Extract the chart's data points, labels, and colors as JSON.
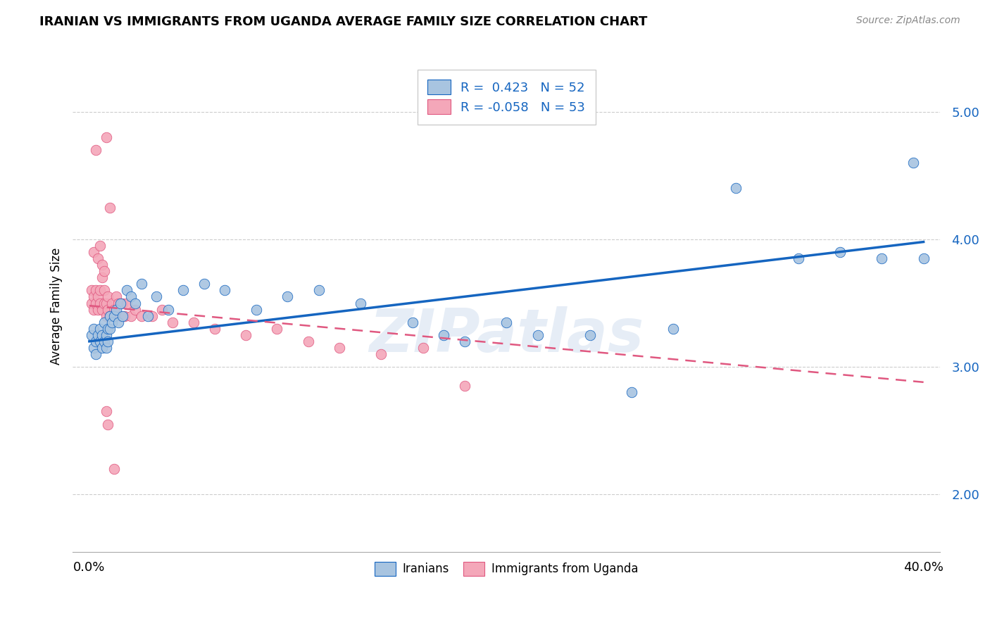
{
  "title": "IRANIAN VS IMMIGRANTS FROM UGANDA AVERAGE FAMILY SIZE CORRELATION CHART",
  "source": "Source: ZipAtlas.com",
  "ylabel": "Average Family Size",
  "yticks": [
    2.0,
    3.0,
    4.0,
    5.0
  ],
  "xlim": [
    -0.008,
    0.408
  ],
  "ylim": [
    1.55,
    5.4
  ],
  "watermark": "ZIPatlas",
  "legend_R1": "R =  0.423",
  "legend_N1": "N = 52",
  "legend_R2": "R = -0.058",
  "legend_N2": "N = 53",
  "iranians_color": "#a8c4e0",
  "uganda_color": "#f4a7b9",
  "trend_iranian_color": "#1565c0",
  "trend_uganda_color": "#e05880",
  "trend_iran_y0": 3.2,
  "trend_iran_y1": 3.98,
  "trend_uganda_y0": 3.48,
  "trend_uganda_y1": 2.88,
  "iranians_x": [
    0.001,
    0.002,
    0.002,
    0.003,
    0.003,
    0.004,
    0.005,
    0.005,
    0.006,
    0.006,
    0.007,
    0.007,
    0.008,
    0.008,
    0.009,
    0.009,
    0.01,
    0.01,
    0.011,
    0.012,
    0.013,
    0.014,
    0.015,
    0.016,
    0.018,
    0.02,
    0.022,
    0.025,
    0.028,
    0.032,
    0.038,
    0.045,
    0.055,
    0.065,
    0.08,
    0.095,
    0.11,
    0.13,
    0.155,
    0.18,
    0.2,
    0.215,
    0.24,
    0.26,
    0.28,
    0.31,
    0.34,
    0.36,
    0.38,
    0.395,
    0.4,
    0.17
  ],
  "iranians_y": [
    3.25,
    3.3,
    3.15,
    3.2,
    3.1,
    3.25,
    3.2,
    3.3,
    3.15,
    3.25,
    3.2,
    3.35,
    3.15,
    3.25,
    3.2,
    3.3,
    3.3,
    3.4,
    3.35,
    3.4,
    3.45,
    3.35,
    3.5,
    3.4,
    3.6,
    3.55,
    3.5,
    3.65,
    3.4,
    3.55,
    3.45,
    3.6,
    3.65,
    3.6,
    3.45,
    3.55,
    3.6,
    3.5,
    3.35,
    3.2,
    3.35,
    3.25,
    3.25,
    2.8,
    3.3,
    4.4,
    3.85,
    3.9,
    3.85,
    4.6,
    3.85,
    3.25
  ],
  "uganda_x": [
    0.001,
    0.001,
    0.002,
    0.002,
    0.003,
    0.003,
    0.004,
    0.004,
    0.005,
    0.005,
    0.006,
    0.006,
    0.007,
    0.007,
    0.008,
    0.008,
    0.009,
    0.009,
    0.01,
    0.011,
    0.012,
    0.013,
    0.014,
    0.015,
    0.016,
    0.017,
    0.018,
    0.02,
    0.022,
    0.025,
    0.03,
    0.035,
    0.04,
    0.05,
    0.06,
    0.075,
    0.09,
    0.105,
    0.12,
    0.14,
    0.16,
    0.18,
    0.008,
    0.01,
    0.003,
    0.002,
    0.004,
    0.006,
    0.005,
    0.007,
    0.008,
    0.009,
    0.012
  ],
  "uganda_y": [
    3.5,
    3.6,
    3.45,
    3.55,
    3.5,
    3.6,
    3.45,
    3.55,
    3.5,
    3.6,
    3.45,
    3.7,
    3.5,
    3.6,
    3.4,
    3.5,
    3.45,
    3.55,
    3.4,
    3.5,
    3.45,
    3.55,
    3.5,
    3.4,
    3.5,
    3.4,
    3.5,
    3.4,
    3.45,
    3.4,
    3.4,
    3.45,
    3.35,
    3.35,
    3.3,
    3.25,
    3.3,
    3.2,
    3.15,
    3.1,
    3.15,
    2.85,
    4.8,
    4.25,
    4.7,
    3.9,
    3.85,
    3.8,
    3.95,
    3.75,
    2.65,
    2.55,
    2.2
  ]
}
